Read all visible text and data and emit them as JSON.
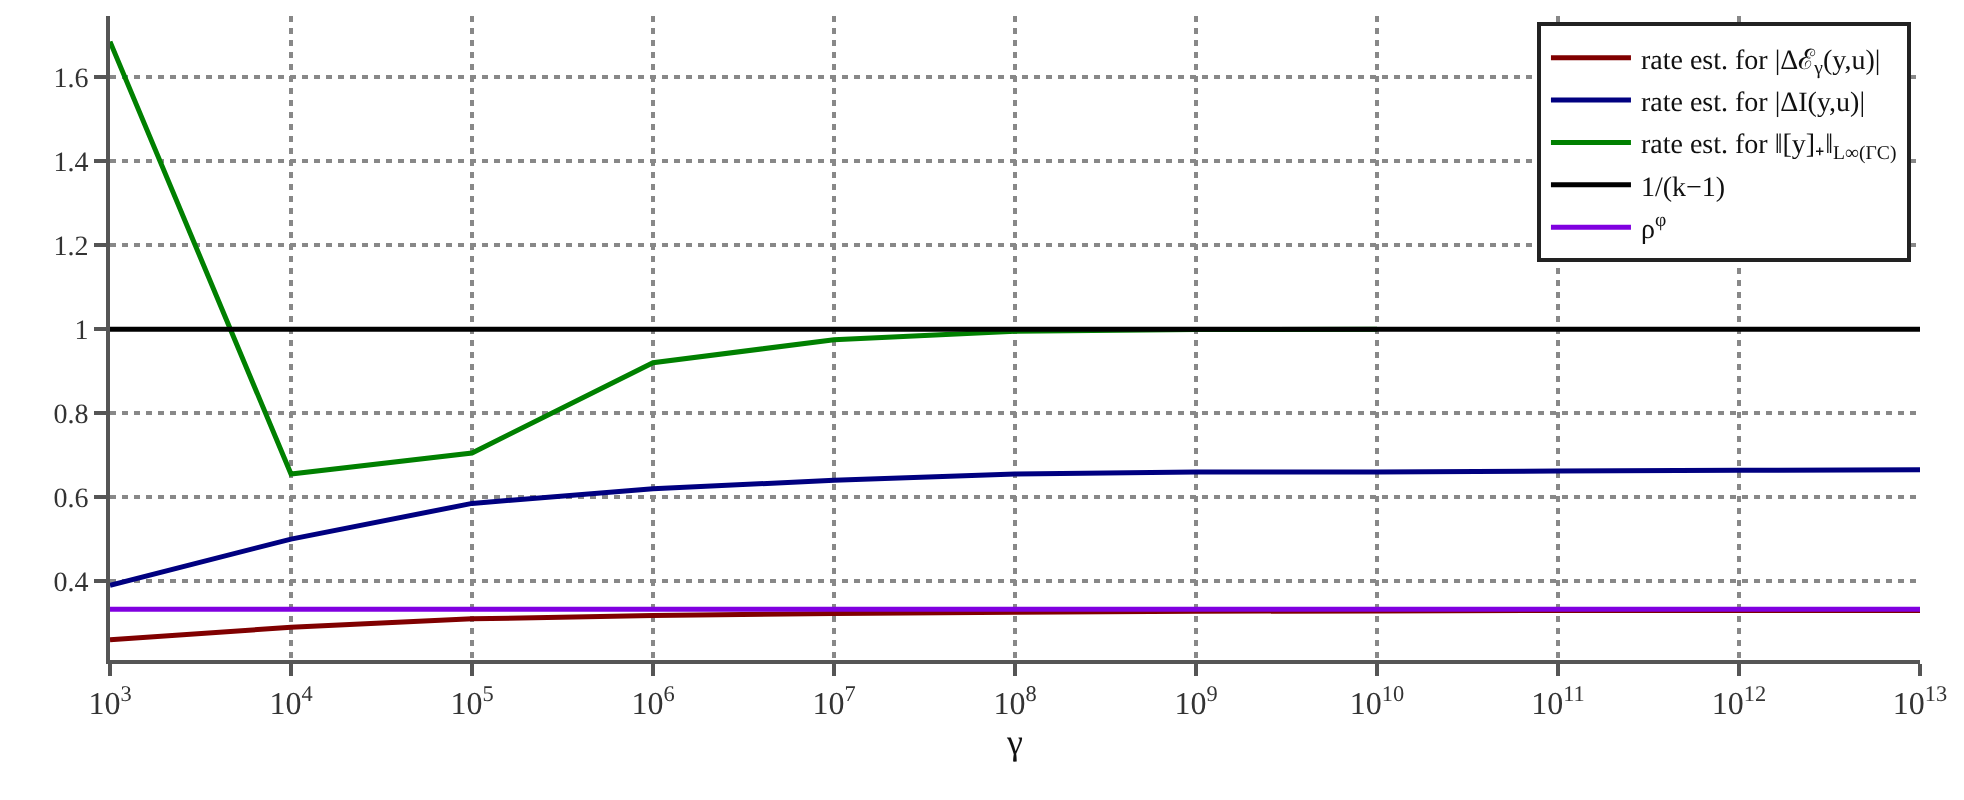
{
  "chart_data": {
    "type": "line",
    "xlabel": "γ",
    "x": [
      1000,
      10000,
      100000,
      1000000,
      10000000,
      100000000,
      1000000000,
      10000000000,
      100000000000,
      1000000000000,
      10000000000000
    ],
    "series": [
      {
        "name": "rate est. for |Δℰ$_{γ}$(y,u)|",
        "color": "#800000",
        "values": [
          0.26,
          0.29,
          0.31,
          0.318,
          0.323,
          0.326,
          0.328,
          0.329,
          0.33,
          0.33,
          0.33
        ]
      },
      {
        "name": "rate est. for |ΔI(y,u)|",
        "color": "#000080",
        "values": [
          0.39,
          0.5,
          0.585,
          0.62,
          0.64,
          0.655,
          0.66,
          0.66,
          0.662,
          0.664,
          0.665
        ]
      },
      {
        "name": "rate est. for ‖[y]₊‖$_{L∞(ΓC)}$",
        "color": "#008000",
        "values": [
          1.685,
          0.655,
          0.705,
          0.92,
          0.975,
          0.995,
          0.999,
          1.0,
          null,
          null,
          null
        ]
      },
      {
        "name": "1/(k−1)",
        "color": "#000000",
        "values": [
          1,
          1,
          1,
          1,
          1,
          1,
          1,
          1,
          1,
          1,
          1
        ]
      },
      {
        "name": "ρ$^{φ}$",
        "color": "#8000e0",
        "values": [
          0.333,
          0.333,
          0.333,
          0.333,
          0.333,
          0.333,
          0.333,
          0.333,
          0.333,
          0.333,
          0.333
        ]
      }
    ],
    "log": "x",
    "xlim": [
      1000,
      10000000000000
    ],
    "xticks": [
      {
        "value": 1000,
        "label": "10$^{3}$"
      },
      {
        "value": 10000,
        "label": "10$^{4}$"
      },
      {
        "value": 100000,
        "label": "10$^{5}$"
      },
      {
        "value": 1000000,
        "label": "10$^{6}$"
      },
      {
        "value": 10000000,
        "label": "10$^{7}$"
      },
      {
        "value": 100000000,
        "label": "10$^{8}$"
      },
      {
        "value": 1000000000,
        "label": "10$^{9}$"
      },
      {
        "value": 10000000000,
        "label": "10$^{10}$"
      },
      {
        "value": 100000000000,
        "label": "10$^{11}$"
      },
      {
        "value": 1000000000000,
        "label": "10$^{12}$"
      },
      {
        "value": 10000000000000,
        "label": "10$^{13}$"
      }
    ],
    "ylim": [
      0.212,
      1.746
    ],
    "yticks": [
      0.4,
      0.6,
      0.8,
      1,
      1.2,
      1.4,
      1.6
    ],
    "grid": true,
    "legend": "top right",
    "marker": "none",
    "line_style": "solid"
  }
}
